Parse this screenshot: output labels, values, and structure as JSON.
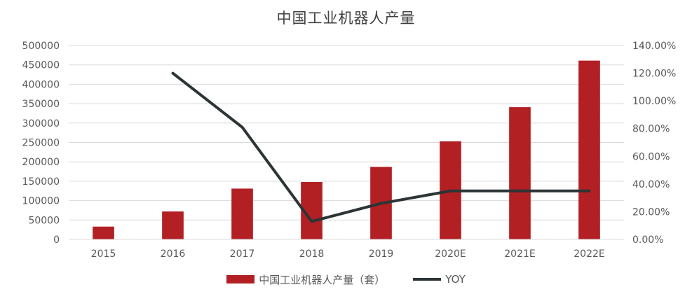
{
  "chart_data": {
    "type": "bar",
    "title": "中国工业机器人产量",
    "categories": [
      "2015",
      "2016",
      "2017",
      "2018",
      "2019",
      "2020E",
      "2021E",
      "2022E"
    ],
    "series": [
      {
        "name": "中国工业机器人产量（套）",
        "type": "bar",
        "axis": "left",
        "color": "#B22024",
        "values": [
          33000,
          72000,
          131000,
          148000,
          187000,
          253000,
          341000,
          461000
        ]
      },
      {
        "name": "YOY",
        "type": "line",
        "axis": "right",
        "color": "#2C3436",
        "values": [
          null,
          1.2,
          0.81,
          0.13,
          0.26,
          0.35,
          0.35,
          0.35
        ]
      }
    ],
    "y_left": {
      "min": 0,
      "max": 500000,
      "step": 50000,
      "ticks": [
        "0",
        "50000",
        "100000",
        "150000",
        "200000",
        "250000",
        "300000",
        "350000",
        "400000",
        "450000",
        "500000"
      ]
    },
    "y_right": {
      "min": 0,
      "max": 1.4,
      "step": 0.2,
      "ticks": [
        "0.00%",
        "20.00%",
        "40.00%",
        "60.00%",
        "80.00%",
        "100.00%",
        "120.00%",
        "140.00%"
      ]
    },
    "grid": true,
    "legend_position": "bottom"
  }
}
